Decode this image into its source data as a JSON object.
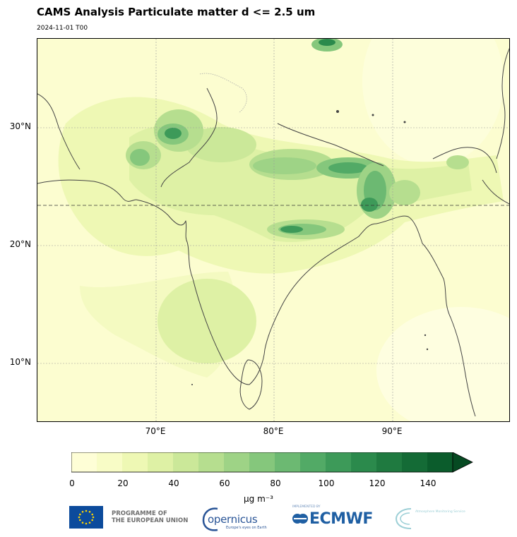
{
  "title": "CAMS Analysis Particulate matter d <= 2.5 um",
  "subtitle": "2024-11-01 T00",
  "map": {
    "latitude_labels": [
      "30°N",
      "20°N",
      "10°N"
    ],
    "longitude_labels": [
      "70°E",
      "80°E",
      "90°E"
    ],
    "latitude_gridlines_deg": [
      10,
      20,
      30
    ],
    "longitude_gridlines_deg": [
      70,
      80,
      90
    ],
    "extent": {
      "lon_min": 60,
      "lon_max": 100,
      "lat_min": 5,
      "lat_max": 37.5
    },
    "tropic_of_cancer_deg": 23.44,
    "background_color": "#fcfdd0",
    "coastline_color": "#444444"
  },
  "colorbar": {
    "ticks": [
      "0",
      "20",
      "40",
      "60",
      "80",
      "100",
      "120",
      "140"
    ],
    "levels": [
      0,
      10,
      20,
      30,
      40,
      50,
      60,
      70,
      80,
      90,
      100,
      110,
      120,
      130,
      140,
      150
    ],
    "colors": [
      "#fefed6",
      "#f8fcc6",
      "#eef8b4",
      "#def1a5",
      "#cbe899",
      "#b6de8f",
      "#9ed386",
      "#85c77c",
      "#6cb972",
      "#52aa66",
      "#3d9a59",
      "#2b8a4c",
      "#1f7a40",
      "#146b36",
      "#0b5c2c"
    ],
    "extend_color": "#064a22",
    "units_label": "µg m⁻³"
  },
  "logos": {
    "eu_programme": "PROGRAMME OF\nTHE EUROPEAN UNION",
    "eu_programme_line1": "PROGRAMME OF",
    "eu_programme_line2": "THE EUROPEAN UNION",
    "copernicus": "opernicus",
    "copernicus_tagline": "Europe's eyes on Earth",
    "ecmwf_implemented_by": "IMPLEMENTED BY",
    "ecmwf": "ECMWF",
    "cams": "Atmosphere Monitoring Service"
  }
}
